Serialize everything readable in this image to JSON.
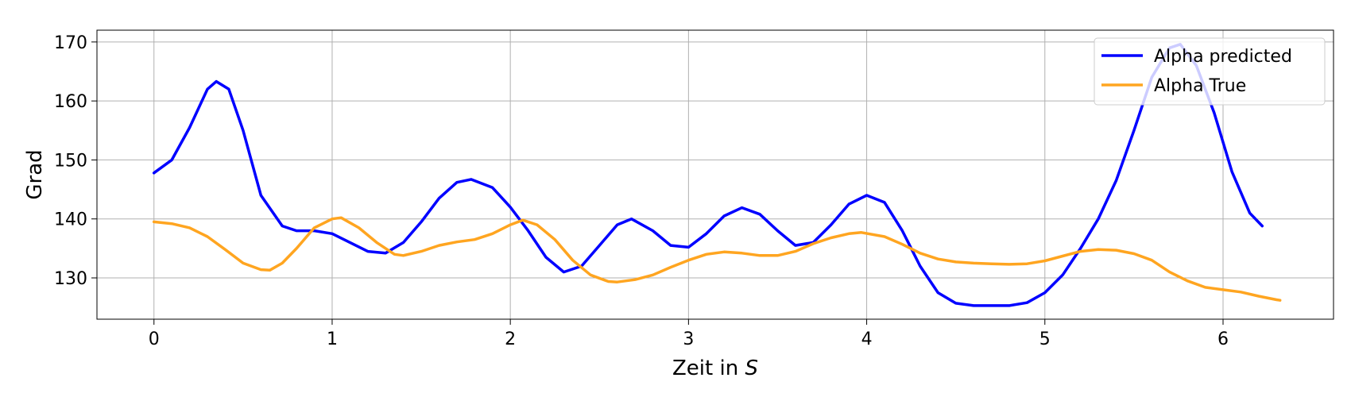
{
  "chart_data": {
    "type": "line",
    "xlabel": "Zeit in ",
    "xlabel_var": "S",
    "ylabel": "Grad",
    "xlim": [
      -0.32,
      6.62
    ],
    "ylim": [
      123,
      172
    ],
    "xticks": [
      0,
      1,
      2,
      3,
      4,
      5,
      6
    ],
    "yticks": [
      130,
      140,
      150,
      160,
      170
    ],
    "grid": true,
    "legend_position": "top-right",
    "series": [
      {
        "name": "Alpha predicted",
        "color": "#0000ff",
        "points": [
          [
            0,
            147.8
          ],
          [
            0.1,
            150
          ],
          [
            0.2,
            155.5
          ],
          [
            0.3,
            162
          ],
          [
            0.35,
            163.3
          ],
          [
            0.42,
            162
          ],
          [
            0.5,
            155
          ],
          [
            0.6,
            144
          ],
          [
            0.72,
            138.8
          ],
          [
            0.8,
            138
          ],
          [
            0.9,
            138
          ],
          [
            1.0,
            137.5
          ],
          [
            1.1,
            136
          ],
          [
            1.2,
            134.5
          ],
          [
            1.3,
            134.2
          ],
          [
            1.4,
            136
          ],
          [
            1.5,
            139.5
          ],
          [
            1.6,
            143.5
          ],
          [
            1.7,
            146.2
          ],
          [
            1.78,
            146.7
          ],
          [
            1.9,
            145.3
          ],
          [
            2.0,
            142
          ],
          [
            2.1,
            138
          ],
          [
            2.2,
            133.5
          ],
          [
            2.3,
            131
          ],
          [
            2.4,
            132
          ],
          [
            2.5,
            135.5
          ],
          [
            2.6,
            139
          ],
          [
            2.68,
            140
          ],
          [
            2.8,
            138
          ],
          [
            2.9,
            135.5
          ],
          [
            3.0,
            135.2
          ],
          [
            3.1,
            137.5
          ],
          [
            3.2,
            140.5
          ],
          [
            3.3,
            141.9
          ],
          [
            3.4,
            140.8
          ],
          [
            3.5,
            138
          ],
          [
            3.6,
            135.5
          ],
          [
            3.7,
            136
          ],
          [
            3.8,
            139
          ],
          [
            3.9,
            142.5
          ],
          [
            4.0,
            144
          ],
          [
            4.1,
            142.8
          ],
          [
            4.2,
            138
          ],
          [
            4.3,
            132
          ],
          [
            4.4,
            127.5
          ],
          [
            4.5,
            125.7
          ],
          [
            4.6,
            125.3
          ],
          [
            4.8,
            125.3
          ],
          [
            4.9,
            125.8
          ],
          [
            5.0,
            127.5
          ],
          [
            5.1,
            130.5
          ],
          [
            5.2,
            135
          ],
          [
            5.3,
            140
          ],
          [
            5.4,
            146.5
          ],
          [
            5.5,
            155
          ],
          [
            5.6,
            164
          ],
          [
            5.7,
            169
          ],
          [
            5.76,
            169.6
          ],
          [
            5.85,
            166
          ],
          [
            5.95,
            158
          ],
          [
            6.05,
            148
          ],
          [
            6.15,
            141
          ],
          [
            6.22,
            138.8
          ]
        ]
      },
      {
        "name": "Alpha True",
        "color": "#ffa520",
        "points": [
          [
            0,
            139.5
          ],
          [
            0.1,
            139.2
          ],
          [
            0.2,
            138.5
          ],
          [
            0.3,
            137
          ],
          [
            0.4,
            134.8
          ],
          [
            0.5,
            132.5
          ],
          [
            0.6,
            131.4
          ],
          [
            0.65,
            131.3
          ],
          [
            0.72,
            132.5
          ],
          [
            0.8,
            135
          ],
          [
            0.9,
            138.5
          ],
          [
            1.0,
            140
          ],
          [
            1.05,
            140.2
          ],
          [
            1.15,
            138.5
          ],
          [
            1.25,
            136
          ],
          [
            1.35,
            134
          ],
          [
            1.4,
            133.8
          ],
          [
            1.5,
            134.5
          ],
          [
            1.6,
            135.5
          ],
          [
            1.7,
            136.1
          ],
          [
            1.8,
            136.5
          ],
          [
            1.9,
            137.5
          ],
          [
            2.0,
            139
          ],
          [
            2.07,
            139.8
          ],
          [
            2.15,
            139
          ],
          [
            2.25,
            136.5
          ],
          [
            2.35,
            133
          ],
          [
            2.45,
            130.5
          ],
          [
            2.55,
            129.4
          ],
          [
            2.6,
            129.3
          ],
          [
            2.7,
            129.7
          ],
          [
            2.8,
            130.5
          ],
          [
            2.9,
            131.8
          ],
          [
            3.0,
            133
          ],
          [
            3.1,
            134
          ],
          [
            3.2,
            134.4
          ],
          [
            3.3,
            134.2
          ],
          [
            3.4,
            133.8
          ],
          [
            3.5,
            133.8
          ],
          [
            3.6,
            134.5
          ],
          [
            3.7,
            135.8
          ],
          [
            3.8,
            136.8
          ],
          [
            3.9,
            137.5
          ],
          [
            3.97,
            137.7
          ],
          [
            4.1,
            137
          ],
          [
            4.2,
            135.7
          ],
          [
            4.3,
            134.2
          ],
          [
            4.4,
            133.2
          ],
          [
            4.5,
            132.7
          ],
          [
            4.6,
            132.5
          ],
          [
            4.7,
            132.4
          ],
          [
            4.8,
            132.3
          ],
          [
            4.9,
            132.4
          ],
          [
            5.0,
            132.9
          ],
          [
            5.1,
            133.7
          ],
          [
            5.2,
            134.5
          ],
          [
            5.3,
            134.8
          ],
          [
            5.4,
            134.7
          ],
          [
            5.5,
            134.1
          ],
          [
            5.6,
            133
          ],
          [
            5.7,
            131
          ],
          [
            5.8,
            129.5
          ],
          [
            5.9,
            128.4
          ],
          [
            6.0,
            128
          ],
          [
            6.1,
            127.6
          ],
          [
            6.2,
            126.9
          ],
          [
            6.3,
            126.3
          ],
          [
            6.32,
            126.2
          ]
        ]
      }
    ]
  }
}
